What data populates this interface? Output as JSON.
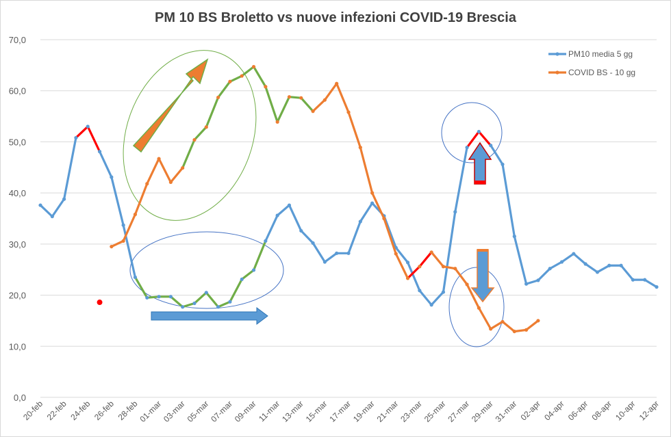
{
  "chart_data": {
    "type": "line",
    "title": "PM 10 BS Broletto vs nuove infezioni COVID-19 Brescia",
    "xlabel": "",
    "ylabel": "",
    "ylim": [
      0,
      70
    ],
    "y_ticks": [
      "0,0",
      "10,0",
      "20,0",
      "30,0",
      "40,0",
      "50,0",
      "60,0",
      "70,0"
    ],
    "x_tick_labels": [
      "20-feb",
      "22-feb",
      "24-feb",
      "26-feb",
      "28-feb",
      "01-mar",
      "03-mar",
      "05-mar",
      "07-mar",
      "09-mar",
      "11-mar",
      "13-mar",
      "15-mar",
      "17-mar",
      "19-mar",
      "21-mar",
      "23-mar",
      "25-mar",
      "27-mar",
      "29-mar",
      "31-mar",
      "02-apr",
      "04-apr",
      "06-apr",
      "08-apr",
      "10-apr",
      "12-apr"
    ],
    "grid": "horizontal",
    "legend_position": "top-right",
    "series": [
      {
        "name": "PM10 media 5 gg",
        "color": "#5B9BD5",
        "x_start_index": 0,
        "values": [
          37.6,
          35.4,
          38.8,
          50.8,
          53.0,
          48.1,
          43.1,
          33.7,
          23.5,
          19.5,
          19.7,
          19.7,
          17.7,
          18.4,
          20.5,
          17.7,
          18.7,
          23.1,
          24.9,
          30.6,
          35.6,
          37.6,
          32.6,
          30.2,
          26.5,
          28.2,
          28.2,
          34.4,
          38.0,
          35.5,
          29.3,
          26.4,
          20.9,
          18.1,
          20.6,
          36.3,
          48.9,
          52.0,
          49.3,
          45.6,
          31.5,
          22.2,
          22.9,
          25.2,
          26.5,
          28.1,
          26.1,
          24.5,
          25.8,
          25.8,
          23.0,
          23.0,
          21.6
        ]
      },
      {
        "name": "COVID BS - 10 gg",
        "color": "#ED7D31",
        "x_start_index": 5,
        "values": [
          18.6,
          29.5,
          30.6,
          35.8,
          41.8,
          46.7,
          42.1,
          44.9,
          50.4,
          52.9,
          58.7,
          61.8,
          62.9,
          64.7,
          60.8,
          53.9,
          58.8,
          58.6,
          56.0,
          58.2,
          61.4,
          55.8,
          48.9,
          40.0,
          35.0,
          28.1,
          23.3,
          25.6,
          28.4,
          25.6,
          25.2,
          22.1,
          17.5,
          13.4,
          14.8,
          12.9,
          13.2,
          15.0
        ]
      }
    ],
    "annotations": {
      "pm10_green_segment_index_range": [
        8,
        19
      ],
      "covid_green_segment_index_range": [
        7,
        18
      ],
      "pm10_red_segments_index_pairs": [
        [
          3,
          4
        ],
        [
          4,
          5
        ],
        [
          36,
          37
        ],
        [
          37,
          38
        ]
      ],
      "covid_red_segments_index_pairs": [
        [
          26,
          27
        ],
        [
          27,
          28
        ]
      ],
      "covid_red_point_index": 0
    }
  }
}
